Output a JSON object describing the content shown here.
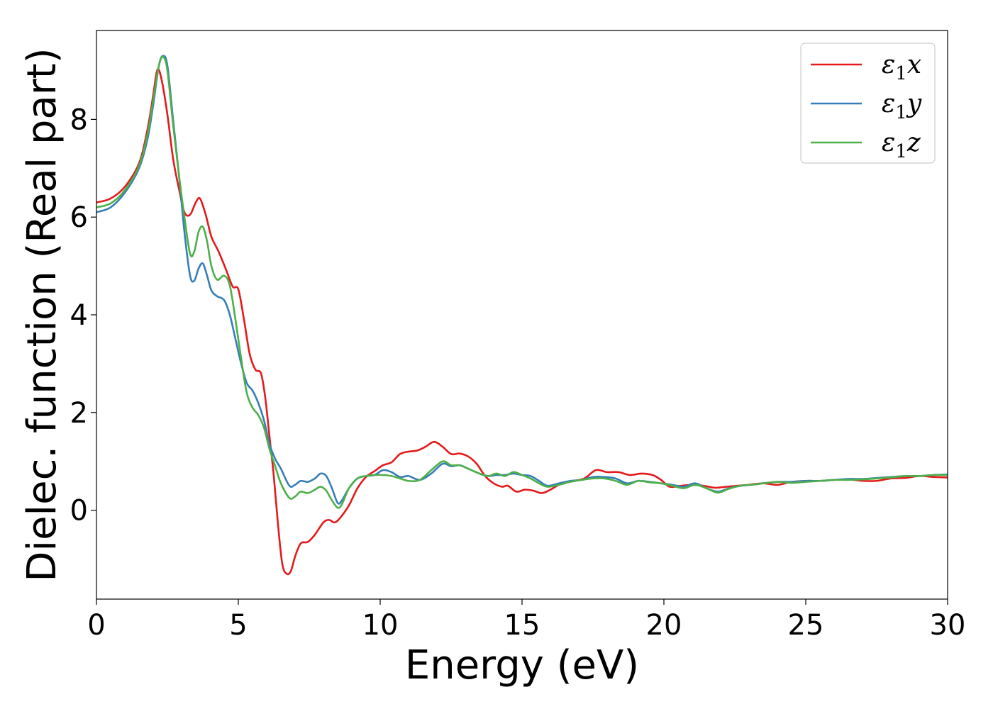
{
  "chart_data": {
    "type": "line",
    "xlabel": "Energy (eV)",
    "ylabel": "Dielec. function (Real part)",
    "xlim": [
      0,
      30
    ],
    "ylim": [
      -1.82,
      9.82
    ],
    "xticks": [
      0,
      5,
      10,
      15,
      20,
      25,
      30
    ],
    "yticks": [
      0,
      2,
      4,
      6,
      8
    ],
    "legend_position": "top-right",
    "grid": false,
    "series": [
      {
        "name": "ε1x",
        "legend_main": "ε",
        "legend_sub": "1",
        "legend_suffix": "x",
        "color": "#e41a1c",
        "points": [
          [
            0,
            6.3
          ],
          [
            0.5,
            6.38
          ],
          [
            1.0,
            6.62
          ],
          [
            1.5,
            7.1
          ],
          [
            1.8,
            7.8
          ],
          [
            2.0,
            8.5
          ],
          [
            2.15,
            9.02
          ],
          [
            2.3,
            8.8
          ],
          [
            2.5,
            8.1
          ],
          [
            2.7,
            7.2
          ],
          [
            2.9,
            6.6
          ],
          [
            3.1,
            6.1
          ],
          [
            3.3,
            6.05
          ],
          [
            3.5,
            6.3
          ],
          [
            3.65,
            6.38
          ],
          [
            3.85,
            6.05
          ],
          [
            4.05,
            5.6
          ],
          [
            4.3,
            5.3
          ],
          [
            4.55,
            4.95
          ],
          [
            4.8,
            4.58
          ],
          [
            5.0,
            4.52
          ],
          [
            5.2,
            3.9
          ],
          [
            5.4,
            3.2
          ],
          [
            5.6,
            2.88
          ],
          [
            5.8,
            2.8
          ],
          [
            5.95,
            2.3
          ],
          [
            6.1,
            1.5
          ],
          [
            6.25,
            0.7
          ],
          [
            6.4,
            -0.3
          ],
          [
            6.55,
            -1.1
          ],
          [
            6.7,
            -1.3
          ],
          [
            6.85,
            -1.25
          ],
          [
            7.0,
            -0.95
          ],
          [
            7.2,
            -0.68
          ],
          [
            7.45,
            -0.65
          ],
          [
            7.7,
            -0.5
          ],
          [
            8.0,
            -0.25
          ],
          [
            8.2,
            -0.2
          ],
          [
            8.4,
            -0.25
          ],
          [
            8.6,
            -0.15
          ],
          [
            8.9,
            0.1
          ],
          [
            9.2,
            0.45
          ],
          [
            9.5,
            0.68
          ],
          [
            9.8,
            0.8
          ],
          [
            10.1,
            0.92
          ],
          [
            10.4,
            0.98
          ],
          [
            10.7,
            1.15
          ],
          [
            11.0,
            1.2
          ],
          [
            11.3,
            1.22
          ],
          [
            11.6,
            1.3
          ],
          [
            11.9,
            1.4
          ],
          [
            12.2,
            1.3
          ],
          [
            12.5,
            1.15
          ],
          [
            12.8,
            1.16
          ],
          [
            13.1,
            1.1
          ],
          [
            13.4,
            0.95
          ],
          [
            13.7,
            0.7
          ],
          [
            14.0,
            0.55
          ],
          [
            14.3,
            0.48
          ],
          [
            14.5,
            0.5
          ],
          [
            14.8,
            0.38
          ],
          [
            15.1,
            0.42
          ],
          [
            15.4,
            0.4
          ],
          [
            15.7,
            0.35
          ],
          [
            16.0,
            0.42
          ],
          [
            16.4,
            0.55
          ],
          [
            16.8,
            0.6
          ],
          [
            17.2,
            0.65
          ],
          [
            17.6,
            0.82
          ],
          [
            18.0,
            0.78
          ],
          [
            18.4,
            0.78
          ],
          [
            18.8,
            0.72
          ],
          [
            19.2,
            0.75
          ],
          [
            19.6,
            0.72
          ],
          [
            19.9,
            0.62
          ],
          [
            20.2,
            0.48
          ],
          [
            20.6,
            0.5
          ],
          [
            21.0,
            0.52
          ],
          [
            21.4,
            0.5
          ],
          [
            21.8,
            0.46
          ],
          [
            22.2,
            0.48
          ],
          [
            22.6,
            0.5
          ],
          [
            23.0,
            0.52
          ],
          [
            23.5,
            0.55
          ],
          [
            24.0,
            0.52
          ],
          [
            24.5,
            0.58
          ],
          [
            25.0,
            0.6
          ],
          [
            25.5,
            0.6
          ],
          [
            26.0,
            0.62
          ],
          [
            26.5,
            0.63
          ],
          [
            27.0,
            0.6
          ],
          [
            27.5,
            0.6
          ],
          [
            28.0,
            0.65
          ],
          [
            28.5,
            0.66
          ],
          [
            29.0,
            0.7
          ],
          [
            29.5,
            0.68
          ],
          [
            30.0,
            0.67
          ]
        ]
      },
      {
        "name": "ε1y",
        "legend_main": "ε",
        "legend_sub": "1",
        "legend_suffix": "y",
        "color": "#377eb8",
        "points": [
          [
            0,
            6.1
          ],
          [
            0.5,
            6.2
          ],
          [
            1.0,
            6.5
          ],
          [
            1.5,
            7.0
          ],
          [
            1.8,
            7.6
          ],
          [
            2.0,
            8.3
          ],
          [
            2.2,
            9.1
          ],
          [
            2.35,
            9.3
          ],
          [
            2.5,
            9.1
          ],
          [
            2.7,
            8.0
          ],
          [
            2.9,
            6.9
          ],
          [
            3.1,
            5.7
          ],
          [
            3.3,
            4.8
          ],
          [
            3.45,
            4.7
          ],
          [
            3.6,
            4.95
          ],
          [
            3.75,
            5.05
          ],
          [
            3.9,
            4.8
          ],
          [
            4.05,
            4.5
          ],
          [
            4.25,
            4.38
          ],
          [
            4.5,
            4.3
          ],
          [
            4.7,
            4.0
          ],
          [
            4.9,
            3.5
          ],
          [
            5.1,
            3.0
          ],
          [
            5.3,
            2.6
          ],
          [
            5.5,
            2.45
          ],
          [
            5.7,
            2.2
          ],
          [
            5.9,
            1.85
          ],
          [
            6.1,
            1.35
          ],
          [
            6.3,
            1.05
          ],
          [
            6.5,
            0.85
          ],
          [
            6.8,
            0.5
          ],
          [
            7.0,
            0.52
          ],
          [
            7.2,
            0.6
          ],
          [
            7.45,
            0.58
          ],
          [
            7.7,
            0.65
          ],
          [
            7.9,
            0.75
          ],
          [
            8.1,
            0.7
          ],
          [
            8.3,
            0.45
          ],
          [
            8.5,
            0.15
          ],
          [
            8.65,
            0.2
          ],
          [
            8.9,
            0.45
          ],
          [
            9.2,
            0.65
          ],
          [
            9.5,
            0.7
          ],
          [
            9.8,
            0.72
          ],
          [
            10.1,
            0.82
          ],
          [
            10.4,
            0.78
          ],
          [
            10.7,
            0.68
          ],
          [
            11.0,
            0.7
          ],
          [
            11.4,
            0.62
          ],
          [
            11.8,
            0.75
          ],
          [
            12.2,
            0.95
          ],
          [
            12.5,
            0.9
          ],
          [
            12.8,
            0.92
          ],
          [
            13.1,
            0.85
          ],
          [
            13.5,
            0.75
          ],
          [
            13.8,
            0.7
          ],
          [
            14.1,
            0.72
          ],
          [
            14.4,
            0.72
          ],
          [
            14.7,
            0.75
          ],
          [
            15.0,
            0.72
          ],
          [
            15.3,
            0.7
          ],
          [
            15.6,
            0.6
          ],
          [
            15.9,
            0.5
          ],
          [
            16.3,
            0.55
          ],
          [
            16.7,
            0.6
          ],
          [
            17.1,
            0.62
          ],
          [
            17.5,
            0.68
          ],
          [
            17.9,
            0.68
          ],
          [
            18.3,
            0.65
          ],
          [
            18.7,
            0.55
          ],
          [
            19.1,
            0.6
          ],
          [
            19.5,
            0.58
          ],
          [
            19.9,
            0.55
          ],
          [
            20.3,
            0.52
          ],
          [
            20.7,
            0.48
          ],
          [
            21.1,
            0.55
          ],
          [
            21.5,
            0.45
          ],
          [
            21.9,
            0.38
          ],
          [
            22.3,
            0.45
          ],
          [
            22.7,
            0.5
          ],
          [
            23.1,
            0.52
          ],
          [
            23.5,
            0.55
          ],
          [
            24.0,
            0.58
          ],
          [
            24.5,
            0.58
          ],
          [
            25.0,
            0.6
          ],
          [
            25.5,
            0.6
          ],
          [
            26.0,
            0.62
          ],
          [
            26.5,
            0.64
          ],
          [
            27.0,
            0.64
          ],
          [
            27.5,
            0.66
          ],
          [
            28.0,
            0.68
          ],
          [
            28.5,
            0.7
          ],
          [
            29.0,
            0.7
          ],
          [
            29.5,
            0.72
          ],
          [
            30.0,
            0.73
          ]
        ]
      },
      {
        "name": "ε1z",
        "legend_main": "ε",
        "legend_sub": "1",
        "legend_suffix": "z",
        "color": "#4daf4a",
        "points": [
          [
            0,
            6.2
          ],
          [
            0.5,
            6.28
          ],
          [
            1.0,
            6.55
          ],
          [
            1.5,
            7.05
          ],
          [
            1.8,
            7.7
          ],
          [
            2.0,
            8.4
          ],
          [
            2.2,
            9.1
          ],
          [
            2.35,
            9.28
          ],
          [
            2.5,
            9.0
          ],
          [
            2.7,
            7.9
          ],
          [
            2.9,
            6.9
          ],
          [
            3.1,
            6.0
          ],
          [
            3.3,
            5.25
          ],
          [
            3.45,
            5.3
          ],
          [
            3.6,
            5.7
          ],
          [
            3.75,
            5.8
          ],
          [
            3.9,
            5.5
          ],
          [
            4.05,
            5.0
          ],
          [
            4.25,
            4.72
          ],
          [
            4.5,
            4.8
          ],
          [
            4.7,
            4.6
          ],
          [
            4.9,
            3.9
          ],
          [
            5.1,
            3.1
          ],
          [
            5.3,
            2.4
          ],
          [
            5.5,
            2.1
          ],
          [
            5.7,
            1.95
          ],
          [
            5.9,
            1.7
          ],
          [
            6.1,
            1.25
          ],
          [
            6.3,
            0.9
          ],
          [
            6.5,
            0.55
          ],
          [
            6.8,
            0.25
          ],
          [
            7.0,
            0.28
          ],
          [
            7.2,
            0.38
          ],
          [
            7.45,
            0.35
          ],
          [
            7.7,
            0.42
          ],
          [
            7.9,
            0.48
          ],
          [
            8.1,
            0.4
          ],
          [
            8.3,
            0.2
          ],
          [
            8.5,
            0.05
          ],
          [
            8.65,
            0.12
          ],
          [
            8.9,
            0.45
          ],
          [
            9.2,
            0.65
          ],
          [
            9.5,
            0.7
          ],
          [
            9.8,
            0.72
          ],
          [
            10.1,
            0.72
          ],
          [
            10.4,
            0.7
          ],
          [
            10.7,
            0.65
          ],
          [
            11.0,
            0.6
          ],
          [
            11.4,
            0.62
          ],
          [
            11.8,
            0.82
          ],
          [
            12.2,
            1.0
          ],
          [
            12.5,
            0.92
          ],
          [
            12.8,
            0.92
          ],
          [
            13.1,
            0.85
          ],
          [
            13.5,
            0.75
          ],
          [
            13.8,
            0.7
          ],
          [
            14.1,
            0.75
          ],
          [
            14.4,
            0.7
          ],
          [
            14.7,
            0.78
          ],
          [
            15.0,
            0.72
          ],
          [
            15.3,
            0.65
          ],
          [
            15.6,
            0.55
          ],
          [
            15.9,
            0.48
          ],
          [
            16.3,
            0.52
          ],
          [
            16.7,
            0.58
          ],
          [
            17.1,
            0.62
          ],
          [
            17.5,
            0.65
          ],
          [
            17.9,
            0.65
          ],
          [
            18.3,
            0.6
          ],
          [
            18.7,
            0.52
          ],
          [
            19.1,
            0.6
          ],
          [
            19.5,
            0.57
          ],
          [
            19.9,
            0.55
          ],
          [
            20.3,
            0.5
          ],
          [
            20.7,
            0.45
          ],
          [
            21.1,
            0.52
          ],
          [
            21.5,
            0.45
          ],
          [
            21.9,
            0.36
          ],
          [
            22.3,
            0.44
          ],
          [
            22.7,
            0.5
          ],
          [
            23.1,
            0.52
          ],
          [
            23.5,
            0.55
          ],
          [
            24.0,
            0.58
          ],
          [
            24.5,
            0.56
          ],
          [
            25.0,
            0.58
          ],
          [
            25.5,
            0.6
          ],
          [
            26.0,
            0.62
          ],
          [
            26.5,
            0.62
          ],
          [
            27.0,
            0.63
          ],
          [
            27.5,
            0.65
          ],
          [
            28.0,
            0.67
          ],
          [
            28.5,
            0.7
          ],
          [
            29.0,
            0.7
          ],
          [
            29.5,
            0.72
          ],
          [
            30.0,
            0.72
          ]
        ]
      }
    ]
  }
}
